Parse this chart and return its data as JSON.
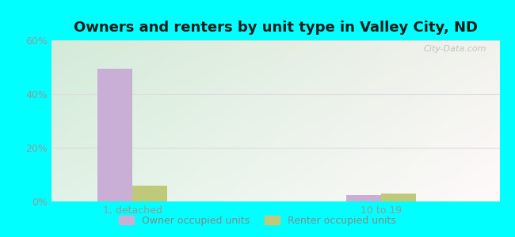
{
  "title": "Owners and renters by unit type in Valley City, ND",
  "title_fontsize": 13,
  "categories": [
    "1, detached",
    "10 to 19"
  ],
  "owner_values": [
    49.5,
    2.5
  ],
  "renter_values": [
    6.0,
    3.0
  ],
  "owner_color": "#c9aed6",
  "renter_color": "#bfc97a",
  "ylim": [
    0,
    60
  ],
  "yticks": [
    0,
    20,
    40,
    60
  ],
  "ytick_labels": [
    "0%",
    "20%",
    "40%",
    "60%"
  ],
  "outer_bg": "#00ffff",
  "bar_width": 0.28,
  "group_positions": [
    0.75,
    2.75
  ],
  "x_min": 0.1,
  "x_max": 3.7,
  "watermark": "City-Data.com",
  "legend_labels": [
    "Owner occupied units",
    "Renter occupied units"
  ],
  "grid_color": "#dddddd",
  "tick_color": "#999999",
  "bg_colors": [
    "#edf7e8",
    "#dff5f0",
    "#f5f5f0",
    "#ffffff"
  ]
}
